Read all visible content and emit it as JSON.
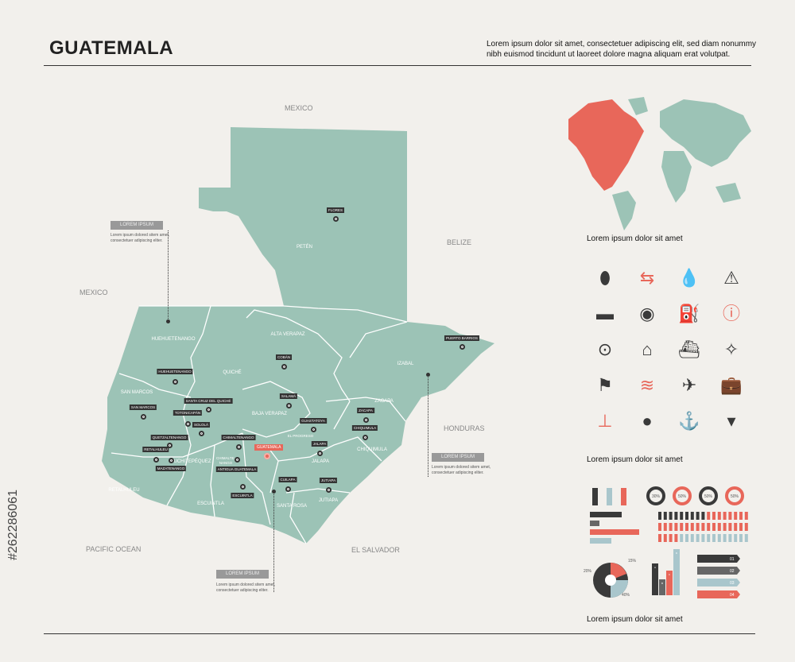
{
  "title": "GUATEMALA",
  "description": "Lorem ipsum dolor sit amet, consectetuer adipiscing elit, sed diam nonummy nibh euismod tincidunt ut laoreet dolore magna aliquam erat volutpat.",
  "colors": {
    "land": "#9cc3b6",
    "accent": "#e8675a",
    "dark": "#3a3a3a",
    "light": "#a9c6cc",
    "background": "#f2f0ec"
  },
  "neighbors": {
    "mexico_north": "MEXICO",
    "mexico_west": "MEXICO",
    "belize": "BELIZE",
    "honduras": "HONDURAS",
    "el_salvador": "EL SALVADOR",
    "pacific": "PACIFIC OCEAN"
  },
  "departments": [
    "PETÉN",
    "HUEHUETENANGO",
    "QUICHÉ",
    "ALTA VERAPAZ",
    "IZABAL",
    "SAN MARCOS",
    "BAJA VERAPAZ",
    "ZACAPA",
    "EL PROGRESO",
    "CHIQUIMULA",
    "JALAPA",
    "RETALHULEU",
    "SUCHITEPÉQUEZ",
    "CHIMALTE-NANGO",
    "ESCUINTLA",
    "SANTA ROSA",
    "JUTIAPA"
  ],
  "cities": [
    "FLORES",
    "PUERTO BARRIOS",
    "COBÁN",
    "HUEHUETENANGO",
    "SANTA CRUZ DEL QUICHÉ",
    "TOTONICAPÁN",
    "SAN MARCOS",
    "SOLOLÁ",
    "QUETZALTENANGO",
    "RETALHULEU",
    "MAZATENANGO",
    "CHIMALTENANGO",
    "ANTIGUA GUATEMALA",
    "ESCUINTLA",
    "SALAMÁ",
    "GUASTATOYA",
    "ZACAPA",
    "CHIQUIMULA",
    "JALAPA",
    "CUILAPA",
    "JUTIAPA"
  ],
  "capital": "GUATEMALA",
  "callouts": [
    {
      "label": "LOREM IPSUM",
      "text": "Lorem ipsum dolored sitem amet, consectetuer adipiscing eliter."
    },
    {
      "label": "LOREM IPSUM",
      "text": "Lorem ipsum dolored sitem amet, consectetuer adipiscing eliter."
    },
    {
      "label": "LOREM IPSUM",
      "text": "Lorem ipsum dolored sitem amet, consectetuer adipiscing eliter."
    }
  ],
  "captions": [
    "Lorem ipsum dolor sit amet",
    "Lorem ipsum dolor sit amet",
    "Lorem ipsum dolor sit amet"
  ],
  "icons": [
    "map-pin",
    "signpost",
    "drops",
    "warning",
    "flag-banner",
    "target",
    "fuel-pump",
    "info",
    "circle-dot",
    "house",
    "ship",
    "compass",
    "flag",
    "waves",
    "airplane",
    "suitcase",
    "pushpin",
    "drop",
    "anchor",
    "chevron-down"
  ],
  "donuts": [
    "30%",
    "50%",
    "50%",
    "50%"
  ],
  "pie_labels": [
    "15%",
    "20%",
    "40%"
  ],
  "bar_letters": [
    "A",
    "B",
    "C",
    "D"
  ],
  "steps": [
    "01",
    "02",
    "03",
    "04"
  ],
  "stock_id": "#262286061"
}
